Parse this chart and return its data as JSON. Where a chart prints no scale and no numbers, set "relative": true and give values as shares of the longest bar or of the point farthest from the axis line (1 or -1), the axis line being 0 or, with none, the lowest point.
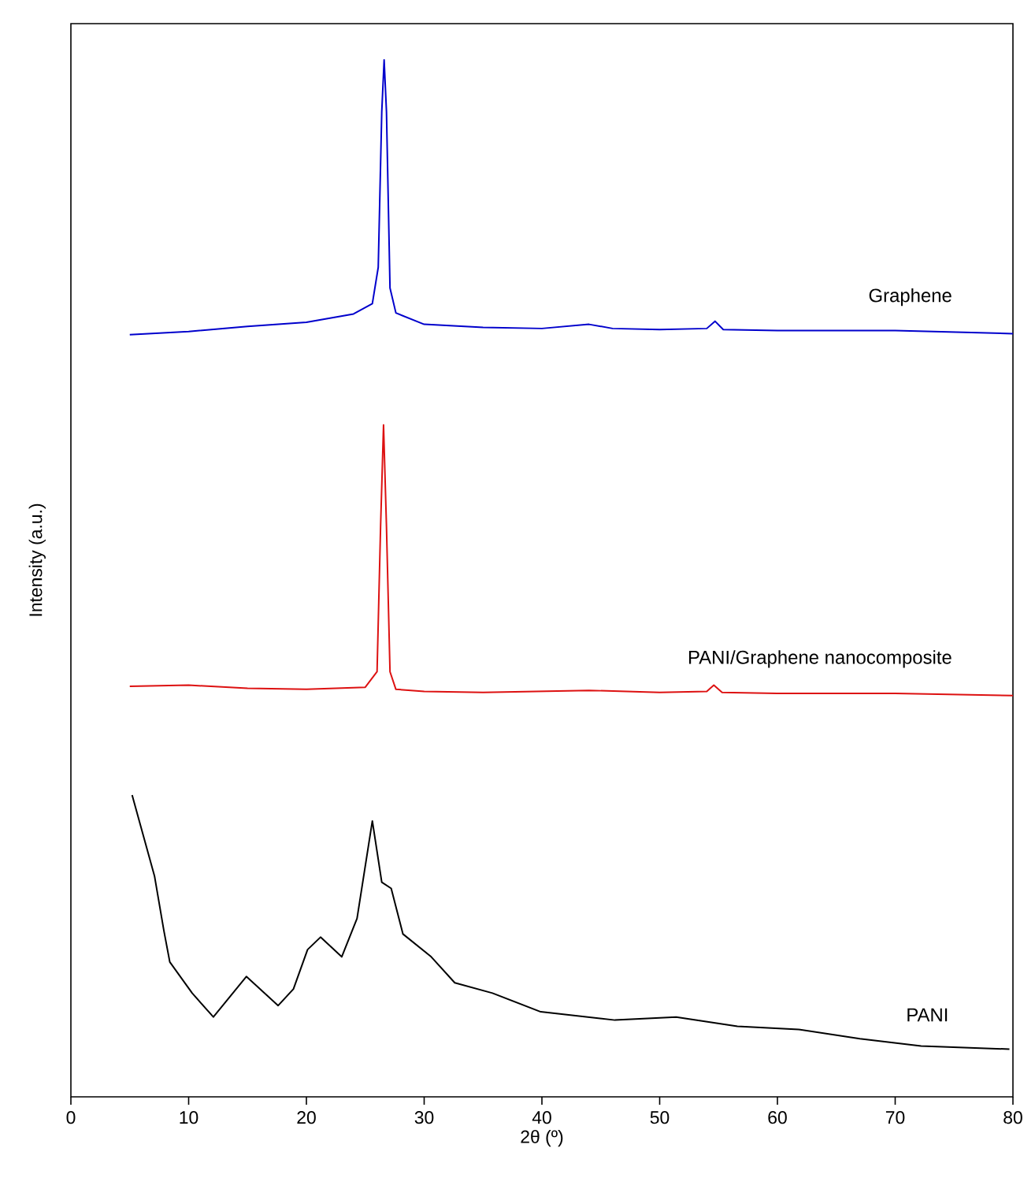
{
  "chart_data": {
    "type": "line",
    "xlabel": "2θ (º)",
    "ylabel": "Intensity (a.u.)",
    "relative": true,
    "xlim": [
      0,
      80
    ],
    "xticks": [
      0,
      10,
      20,
      30,
      40,
      50,
      60,
      70,
      80
    ],
    "tick_labels": "x",
    "grid": false,
    "legend": false,
    "marker": "none",
    "line_style": "solid",
    "series": [
      {
        "name": "Graphene",
        "color": "#0000cc",
        "x": [
          5,
          10,
          15,
          20,
          24,
          25.6,
          26.1,
          26.4,
          26.6,
          26.8,
          27.1,
          27.6,
          30,
          35,
          40,
          44,
          46,
          50,
          54,
          54.7,
          55.4,
          60,
          70,
          80
        ],
        "values": [
          0.735,
          0.738,
          0.743,
          0.747,
          0.755,
          0.765,
          0.8,
          0.95,
          1.0,
          0.95,
          0.78,
          0.756,
          0.745,
          0.742,
          0.741,
          0.745,
          0.741,
          0.74,
          0.741,
          0.748,
          0.74,
          0.739,
          0.739,
          0.736
        ]
      },
      {
        "name": "PANI/Graphene nanocomposite",
        "color": "#dd1111",
        "x": [
          5,
          10,
          15,
          20,
          25,
          26.0,
          26.3,
          26.55,
          26.8,
          27.1,
          27.6,
          30,
          35,
          44,
          50,
          54,
          54.6,
          55.3,
          60,
          70,
          80
        ],
        "values": [
          0.396,
          0.397,
          0.394,
          0.393,
          0.395,
          0.41,
          0.55,
          0.648,
          0.55,
          0.41,
          0.393,
          0.391,
          0.39,
          0.392,
          0.39,
          0.391,
          0.397,
          0.39,
          0.389,
          0.389,
          0.387
        ]
      },
      {
        "name": "PANI",
        "color": "#000000",
        "x": [
          5.2,
          6.1,
          7.1,
          7.9,
          8.4,
          10.3,
          12.1,
          14.9,
          17.6,
          18.9,
          20.1,
          21.2,
          23.0,
          24.3,
          25.6,
          26.4,
          27.2,
          28.2,
          30.6,
          32.6,
          35.8,
          39.9,
          46.2,
          51.4,
          56.6,
          61.8,
          67.0,
          72.2,
          79.7
        ],
        "values": [
          0.291,
          0.254,
          0.213,
          0.16,
          0.13,
          0.1,
          0.077,
          0.116,
          0.088,
          0.104,
          0.142,
          0.154,
          0.135,
          0.172,
          0.266,
          0.207,
          0.201,
          0.157,
          0.135,
          0.11,
          0.1,
          0.082,
          0.074,
          0.077,
          0.068,
          0.065,
          0.056,
          0.049,
          0.046
        ]
      }
    ]
  }
}
